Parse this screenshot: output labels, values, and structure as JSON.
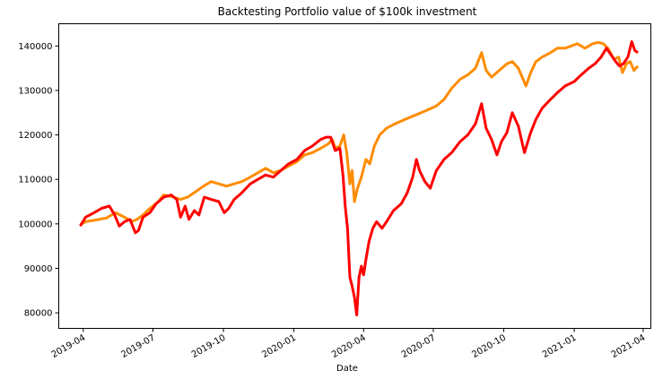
{
  "chart_data": {
    "type": "line",
    "title": "Backtesting Portfolio value of $100k investment",
    "xlabel": "Date",
    "ylabel": "",
    "xlim": [
      "2019-02-28",
      "2021-04-11"
    ],
    "ylim": [
      76500,
      145000
    ],
    "x_ticks": [
      "2019-04",
      "2019-07",
      "2019-10",
      "2020-01",
      "2020-04",
      "2020-07",
      "2020-10",
      "2021-01",
      "2021-04"
    ],
    "y_ticks": [
      80000,
      90000,
      100000,
      110000,
      120000,
      130000,
      140000
    ],
    "grid": false,
    "legend": "none",
    "series": [
      {
        "color": "#ff8c00",
        "points": [
          [
            "2019-03-28",
            99800
          ],
          [
            "2019-04-04",
            100500
          ],
          [
            "2019-04-15",
            100800
          ],
          [
            "2019-05-01",
            101300
          ],
          [
            "2019-05-13",
            102500
          ],
          [
            "2019-05-27",
            101300
          ],
          [
            "2019-06-03",
            100500
          ],
          [
            "2019-06-10",
            101000
          ],
          [
            "2019-06-18",
            102000
          ],
          [
            "2019-06-27",
            103500
          ],
          [
            "2019-07-08",
            105000
          ],
          [
            "2019-07-15",
            106500
          ],
          [
            "2019-07-29",
            106000
          ],
          [
            "2019-08-06",
            105500
          ],
          [
            "2019-08-15",
            106000
          ],
          [
            "2019-08-28",
            107500
          ],
          [
            "2019-09-05",
            108500
          ],
          [
            "2019-09-15",
            109500
          ],
          [
            "2019-09-25",
            109000
          ],
          [
            "2019-10-05",
            108500
          ],
          [
            "2019-10-15",
            109000
          ],
          [
            "2019-10-25",
            109500
          ],
          [
            "2019-11-05",
            110500
          ],
          [
            "2019-11-15",
            111500
          ],
          [
            "2019-11-25",
            112500
          ],
          [
            "2019-12-05",
            111500
          ],
          [
            "2019-12-15",
            112000
          ],
          [
            "2019-12-25",
            113000
          ],
          [
            "2020-01-05",
            114000
          ],
          [
            "2020-01-15",
            115500
          ],
          [
            "2020-01-25",
            116000
          ],
          [
            "2020-02-05",
            117000
          ],
          [
            "2020-02-15",
            118000
          ],
          [
            "2020-02-20",
            119000
          ],
          [
            "2020-02-24",
            117000
          ],
          [
            "2020-03-01",
            117500
          ],
          [
            "2020-03-06",
            120000
          ],
          [
            "2020-03-10",
            116000
          ],
          [
            "2020-03-14",
            109000
          ],
          [
            "2020-03-17",
            112000
          ],
          [
            "2020-03-20",
            105000
          ],
          [
            "2020-03-24",
            108000
          ],
          [
            "2020-03-29",
            110500
          ],
          [
            "2020-04-04",
            114500
          ],
          [
            "2020-04-09",
            113500
          ],
          [
            "2020-04-15",
            117500
          ],
          [
            "2020-04-22",
            120000
          ],
          [
            "2020-05-01",
            121500
          ],
          [
            "2020-05-12",
            122500
          ],
          [
            "2020-05-25",
            123500
          ],
          [
            "2020-06-08",
            124500
          ],
          [
            "2020-06-22",
            125500
          ],
          [
            "2020-07-05",
            126500
          ],
          [
            "2020-07-15",
            128000
          ],
          [
            "2020-07-25",
            130500
          ],
          [
            "2020-08-05",
            132500
          ],
          [
            "2020-08-15",
            133500
          ],
          [
            "2020-08-25",
            135000
          ],
          [
            "2020-09-02",
            138500
          ],
          [
            "2020-09-08",
            134500
          ],
          [
            "2020-09-15",
            133000
          ],
          [
            "2020-09-25",
            134500
          ],
          [
            "2020-10-05",
            136000
          ],
          [
            "2020-10-12",
            136500
          ],
          [
            "2020-10-20",
            135000
          ],
          [
            "2020-10-30",
            131000
          ],
          [
            "2020-11-05",
            134000
          ],
          [
            "2020-11-12",
            136500
          ],
          [
            "2020-11-20",
            137500
          ],
          [
            "2020-12-01",
            138500
          ],
          [
            "2020-12-10",
            139500
          ],
          [
            "2020-12-20",
            139500
          ],
          [
            "2021-01-05",
            140500
          ],
          [
            "2021-01-15",
            139500
          ],
          [
            "2021-01-25",
            140500
          ],
          [
            "2021-02-01",
            140800
          ],
          [
            "2021-02-08",
            140500
          ],
          [
            "2021-02-14",
            139500
          ],
          [
            "2021-02-22",
            137000
          ],
          [
            "2021-02-28",
            137500
          ],
          [
            "2021-03-05",
            134000
          ],
          [
            "2021-03-10",
            136000
          ],
          [
            "2021-03-15",
            136500
          ],
          [
            "2021-03-20",
            134500
          ],
          [
            "2021-03-25",
            135500
          ]
        ]
      },
      {
        "color": "#ff0000",
        "points": [
          [
            "2019-03-28",
            99500
          ],
          [
            "2019-04-04",
            101500
          ],
          [
            "2019-04-15",
            102500
          ],
          [
            "2019-04-25",
            103500
          ],
          [
            "2019-05-05",
            104000
          ],
          [
            "2019-05-12",
            102000
          ],
          [
            "2019-05-18",
            99500
          ],
          [
            "2019-05-25",
            100500
          ],
          [
            "2019-06-01",
            101000
          ],
          [
            "2019-06-08",
            98000
          ],
          [
            "2019-06-12",
            98500
          ],
          [
            "2019-06-18",
            101500
          ],
          [
            "2019-06-27",
            102500
          ],
          [
            "2019-07-05",
            104500
          ],
          [
            "2019-07-15",
            106000
          ],
          [
            "2019-07-25",
            106500
          ],
          [
            "2019-08-01",
            105500
          ],
          [
            "2019-08-06",
            101500
          ],
          [
            "2019-08-12",
            104000
          ],
          [
            "2019-08-17",
            101000
          ],
          [
            "2019-08-24",
            103000
          ],
          [
            "2019-08-30",
            102000
          ],
          [
            "2019-09-06",
            106000
          ],
          [
            "2019-09-15",
            105500
          ],
          [
            "2019-09-25",
            105000
          ],
          [
            "2019-10-02",
            102500
          ],
          [
            "2019-10-08",
            103500
          ],
          [
            "2019-10-15",
            105500
          ],
          [
            "2019-10-25",
            107000
          ],
          [
            "2019-11-05",
            109000
          ],
          [
            "2019-11-15",
            110000
          ],
          [
            "2019-11-25",
            111000
          ],
          [
            "2019-12-05",
            110500
          ],
          [
            "2019-12-15",
            112000
          ],
          [
            "2019-12-25",
            113500
          ],
          [
            "2020-01-05",
            114500
          ],
          [
            "2020-01-15",
            116500
          ],
          [
            "2020-01-25",
            117500
          ],
          [
            "2020-02-05",
            119000
          ],
          [
            "2020-02-12",
            119500
          ],
          [
            "2020-02-18",
            119500
          ],
          [
            "2020-02-24",
            116500
          ],
          [
            "2020-03-01",
            117000
          ],
          [
            "2020-03-05",
            111000
          ],
          [
            "2020-03-08",
            104000
          ],
          [
            "2020-03-11",
            99000
          ],
          [
            "2020-03-14",
            88000
          ],
          [
            "2020-03-17",
            86000
          ],
          [
            "2020-03-20",
            83500
          ],
          [
            "2020-03-23",
            79500
          ],
          [
            "2020-03-26",
            88000
          ],
          [
            "2020-03-29",
            90500
          ],
          [
            "2020-04-01",
            88500
          ],
          [
            "2020-04-04",
            92000
          ],
          [
            "2020-04-08",
            96000
          ],
          [
            "2020-04-13",
            99000
          ],
          [
            "2020-04-18",
            100500
          ],
          [
            "2020-04-25",
            99000
          ],
          [
            "2020-05-01",
            100500
          ],
          [
            "2020-05-10",
            103000
          ],
          [
            "2020-05-20",
            104500
          ],
          [
            "2020-05-28",
            107000
          ],
          [
            "2020-06-04",
            110500
          ],
          [
            "2020-06-09",
            114500
          ],
          [
            "2020-06-13",
            112000
          ],
          [
            "2020-06-20",
            109500
          ],
          [
            "2020-06-27",
            108000
          ],
          [
            "2020-07-05",
            112000
          ],
          [
            "2020-07-15",
            114500
          ],
          [
            "2020-07-25",
            116000
          ],
          [
            "2020-08-05",
            118500
          ],
          [
            "2020-08-15",
            120000
          ],
          [
            "2020-08-25",
            122500
          ],
          [
            "2020-09-02",
            127000
          ],
          [
            "2020-09-08",
            121500
          ],
          [
            "2020-09-15",
            119000
          ],
          [
            "2020-09-22",
            115500
          ],
          [
            "2020-09-28",
            118500
          ],
          [
            "2020-10-05",
            120500
          ],
          [
            "2020-10-12",
            125000
          ],
          [
            "2020-10-20",
            122000
          ],
          [
            "2020-10-28",
            116000
          ],
          [
            "2020-11-05",
            120500
          ],
          [
            "2020-11-12",
            123500
          ],
          [
            "2020-11-20",
            126000
          ],
          [
            "2020-12-01",
            128000
          ],
          [
            "2020-12-10",
            129500
          ],
          [
            "2020-12-20",
            131000
          ],
          [
            "2021-01-01",
            132000
          ],
          [
            "2021-01-10",
            133500
          ],
          [
            "2021-01-20",
            135000
          ],
          [
            "2021-01-28",
            136000
          ],
          [
            "2021-02-05",
            137500
          ],
          [
            "2021-02-12",
            139500
          ],
          [
            "2021-02-18",
            138000
          ],
          [
            "2021-02-24",
            136500
          ],
          [
            "2021-03-01",
            135500
          ],
          [
            "2021-03-06",
            136000
          ],
          [
            "2021-03-12",
            137500
          ],
          [
            "2021-03-17",
            141000
          ],
          [
            "2021-03-21",
            139000
          ],
          [
            "2021-03-25",
            138500
          ]
        ]
      }
    ]
  }
}
